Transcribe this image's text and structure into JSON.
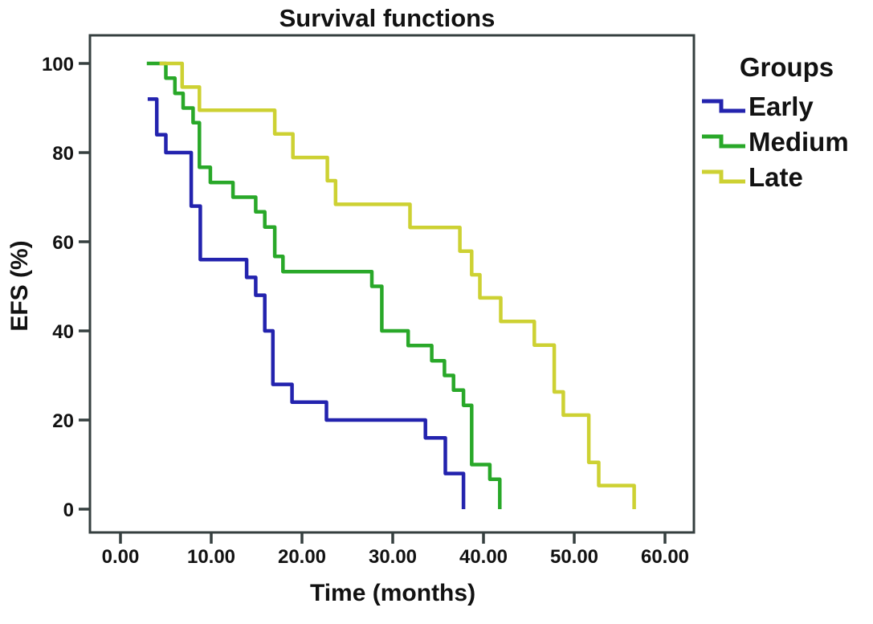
{
  "figure_background": "#ffffff",
  "chart_data": {
    "type": "line",
    "line_style": "step-after",
    "chart_kind": "kaplan-meier-survival",
    "title": "Survival functions",
    "xlabel": "Time (months)",
    "ylabel": "EFS (%)",
    "xlim": [
      0,
      60
    ],
    "ylim": [
      0,
      100
    ],
    "grid": false,
    "x_ticks": [
      0,
      10,
      20,
      30,
      40,
      50,
      60
    ],
    "x_tick_labels": [
      "0.00",
      "10.00",
      "20.00",
      "30.00",
      "40.00",
      "50.00",
      "60.00"
    ],
    "y_ticks": [
      0,
      20,
      40,
      60,
      80,
      100
    ],
    "y_tick_labels": [
      "0",
      "20",
      "40",
      "60",
      "80",
      "100"
    ],
    "legend_title": "Groups",
    "legend_position": "right",
    "colors": {
      "frame": "#353f3f",
      "text": "#121212",
      "early": "#2323ae",
      "medium": "#29a829",
      "late": "#cdd133"
    },
    "series": [
      {
        "name": "Early",
        "color": "#2323ae",
        "points": [
          [
            3,
            92
          ],
          [
            4,
            84
          ],
          [
            5,
            80
          ],
          [
            7.8,
            68
          ],
          [
            8.8,
            56
          ],
          [
            13.9,
            52
          ],
          [
            14.9,
            48
          ],
          [
            15.9,
            40
          ],
          [
            16.8,
            28
          ],
          [
            18.9,
            24
          ],
          [
            22.7,
            20
          ],
          [
            33.6,
            16
          ],
          [
            35.8,
            8
          ],
          [
            37.8,
            0
          ]
        ]
      },
      {
        "name": "Medium",
        "color": "#29a829",
        "points": [
          [
            2.9,
            100
          ],
          [
            5,
            96.7
          ],
          [
            6,
            93.3
          ],
          [
            6.9,
            90
          ],
          [
            8,
            86.7
          ],
          [
            8.7,
            76.7
          ],
          [
            9.9,
            73.3
          ],
          [
            12.4,
            70
          ],
          [
            14.9,
            66.7
          ],
          [
            15.9,
            63.3
          ],
          [
            17,
            56.7
          ],
          [
            17.9,
            53.3
          ],
          [
            27.7,
            50
          ],
          [
            28.8,
            40
          ],
          [
            31.7,
            36.7
          ],
          [
            34.3,
            33.3
          ],
          [
            35.7,
            30
          ],
          [
            36.7,
            26.7
          ],
          [
            37.8,
            23.3
          ],
          [
            38.7,
            10
          ],
          [
            40.7,
            6.7
          ],
          [
            41.8,
            0
          ]
        ]
      },
      {
        "name": "Late",
        "color": "#cdd133",
        "points": [
          [
            4.3,
            100
          ],
          [
            6.8,
            94.7
          ],
          [
            8.7,
            89.5
          ],
          [
            17,
            84.2
          ],
          [
            19,
            78.9
          ],
          [
            22.8,
            73.7
          ],
          [
            23.7,
            68.4
          ],
          [
            31.9,
            63.2
          ],
          [
            37.4,
            57.9
          ],
          [
            38.7,
            52.6
          ],
          [
            39.6,
            47.4
          ],
          [
            41.9,
            42.1
          ],
          [
            45.6,
            36.8
          ],
          [
            47.8,
            26.3
          ],
          [
            48.8,
            21.1
          ],
          [
            51.6,
            10.5
          ],
          [
            52.7,
            5.3
          ],
          [
            56.6,
            0
          ]
        ]
      }
    ]
  }
}
